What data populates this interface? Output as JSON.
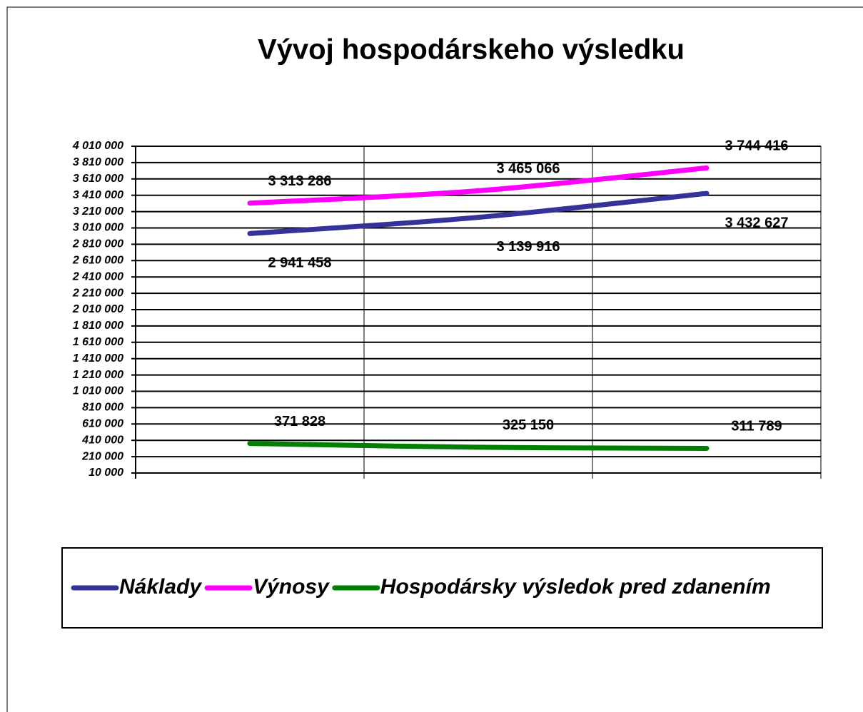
{
  "chart_data": {
    "type": "line",
    "title": "Vývoj hospodárskeho výsledku",
    "categories": [
      null,
      null,
      null
    ],
    "series": [
      {
        "name": "Náklady",
        "color": "#333399",
        "values": [
          2941458,
          3139916,
          3432627
        ],
        "value_labels": [
          "2 941 458",
          "3 139 916",
          "3 432 627"
        ]
      },
      {
        "name": "Výnosy",
        "color": "#ff00ff",
        "values": [
          3313286,
          3465066,
          3744416
        ],
        "value_labels": [
          "3 313 286",
          "3 465 066",
          "3 744 416"
        ]
      },
      {
        "name": "Hospodársky výsledok pred zdanením",
        "color": "#008000",
        "values": [
          371828,
          325150,
          311789
        ],
        "value_labels": [
          "371 828",
          "325 150",
          "311 789"
        ]
      }
    ],
    "ylim": [
      10000,
      4010000
    ],
    "yticks": [
      {
        "value": 10000,
        "label": "10 000"
      },
      {
        "value": 210000,
        "label": "210 000"
      },
      {
        "value": 410000,
        "label": "410 000"
      },
      {
        "value": 610000,
        "label": "610 000"
      },
      {
        "value": 810000,
        "label": "810 000"
      },
      {
        "value": 1010000,
        "label": "1 010 000"
      },
      {
        "value": 1210000,
        "label": "1 210 000"
      },
      {
        "value": 1410000,
        "label": "1 410 000"
      },
      {
        "value": 1610000,
        "label": "1 610 000"
      },
      {
        "value": 1810000,
        "label": "1 810 000"
      },
      {
        "value": 2010000,
        "label": "2 010 000"
      },
      {
        "value": 2210000,
        "label": "2 210 000"
      },
      {
        "value": 2410000,
        "label": "2 410 000"
      },
      {
        "value": 2610000,
        "label": "2 610 000"
      },
      {
        "value": 2810000,
        "label": "2 810 000"
      },
      {
        "value": 3010000,
        "label": "3 010 000"
      },
      {
        "value": 3210000,
        "label": "3 210 000"
      },
      {
        "value": 3410000,
        "label": "3 410 000"
      },
      {
        "value": 3610000,
        "label": "3 610 000"
      },
      {
        "value": 3810000,
        "label": "3 810 000"
      },
      {
        "value": 4010000,
        "label": "4 010 000"
      }
    ],
    "grid": true,
    "legend": "bottom"
  }
}
